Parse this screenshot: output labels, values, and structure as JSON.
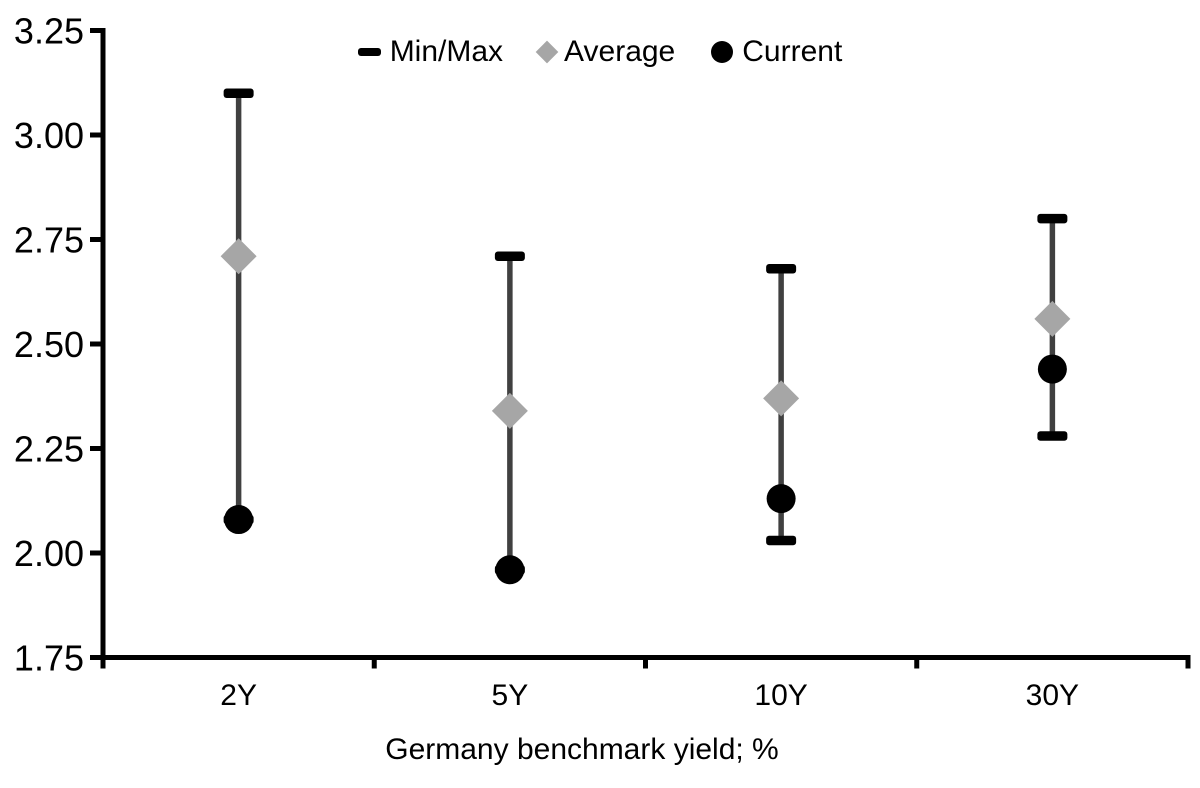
{
  "legend": {
    "items": [
      {
        "label": "Min/Max",
        "marker": "dash-icon"
      },
      {
        "label": "Average",
        "marker": "diamond-icon"
      },
      {
        "label": "Current",
        "marker": "circle-icon"
      }
    ]
  },
  "colors": {
    "marker_black": "#000000",
    "range_line": "#404040",
    "average_gray": "#a6a6a6",
    "axis": "#000000"
  },
  "chart_data": {
    "type": "scatter",
    "subtype": "hi-lo range with average and current markers",
    "categories": [
      "2Y",
      "5Y",
      "10Y",
      "30Y"
    ],
    "series": [
      {
        "name": "Min/Max",
        "min": [
          2.08,
          1.96,
          2.03,
          2.28
        ],
        "max": [
          3.1,
          2.71,
          2.68,
          2.8
        ]
      },
      {
        "name": "Average",
        "values": [
          2.71,
          2.34,
          2.37,
          2.56
        ]
      },
      {
        "name": "Current",
        "values": [
          2.08,
          1.96,
          2.13,
          2.44
        ]
      }
    ],
    "title": "",
    "xlabel": "Germany benchmark yield; %",
    "ylabel": "",
    "ylim": [
      1.75,
      3.25
    ],
    "ytick_labels": [
      "3.25",
      "3.00",
      "2.75",
      "2.50",
      "2.25",
      "2.00",
      "1.75"
    ],
    "grid": false,
    "legend_position": "top-center"
  }
}
